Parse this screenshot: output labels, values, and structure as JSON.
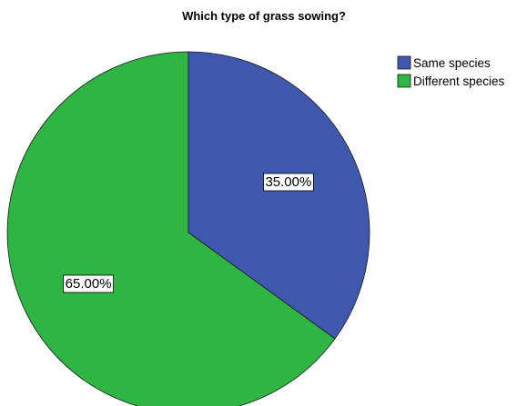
{
  "chart_data": {
    "type": "pie",
    "title": "Which type of grass sowing?",
    "series": [
      {
        "name": "Same species",
        "value": 35.0,
        "label": "35.00%",
        "color": "#3f58ad"
      },
      {
        "name": "Different species",
        "value": 65.0,
        "label": "65.00%",
        "color": "#2fb544"
      }
    ],
    "start_angle_deg": 0,
    "direction": "clockwise",
    "legend_position": "top-right"
  }
}
